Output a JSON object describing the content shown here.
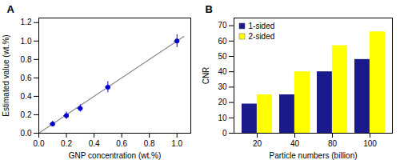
{
  "chart_data": [
    {
      "type": "scatter",
      "title": "A",
      "xlabel": "GNP concentration (wt.%)",
      "ylabel": "Estimated value (wt.%)",
      "xlim": [
        0,
        1.1
      ],
      "ylim": [
        0,
        1.25
      ],
      "xticks": [
        {
          "value": 0,
          "label": "0.0"
        },
        0.2,
        0.4,
        0.6,
        0.8,
        {
          "value": 1.0,
          "label": "1.0"
        }
      ],
      "yticks": [
        {
          "value": 0,
          "label": "0.0"
        },
        0.2,
        0.4,
        0.6,
        0.8,
        {
          "value": 1.0,
          "label": "1.0"
        },
        1.2
      ],
      "series": [
        {
          "type": "line",
          "color": "#888888",
          "x": [
            0.0,
            1.05
          ],
          "values": [
            0.0,
            1.05
          ]
        },
        {
          "type": "scatter",
          "color": "#0000CD",
          "marker": "circle",
          "x": [
            0.1,
            0.2,
            0.3,
            0.5,
            1.0
          ],
          "values": [
            0.1,
            0.19,
            0.27,
            0.5,
            1.0
          ],
          "x_err": [
            0.02,
            0.02,
            0.02,
            0.02,
            0.02
          ],
          "y_err": [
            0.03,
            0.04,
            0.04,
            0.06,
            0.07
          ]
        }
      ]
    },
    {
      "type": "bar",
      "title": "B",
      "xlabel": "Particle numbers (billion)",
      "ylabel": "CNR",
      "categories": [
        "20",
        "40",
        "80",
        "100"
      ],
      "ylim": [
        0,
        75
      ],
      "yticks": [
        0,
        10,
        20,
        30,
        40,
        50,
        60,
        70
      ],
      "legend": "upper left",
      "series": [
        {
          "name": "1-sided",
          "color": "#1a1a8c",
          "values": [
            19,
            25,
            40,
            48
          ]
        },
        {
          "name": "2-sided",
          "color": "#ffff00",
          "values": [
            25,
            40,
            57,
            66
          ]
        }
      ]
    }
  ]
}
